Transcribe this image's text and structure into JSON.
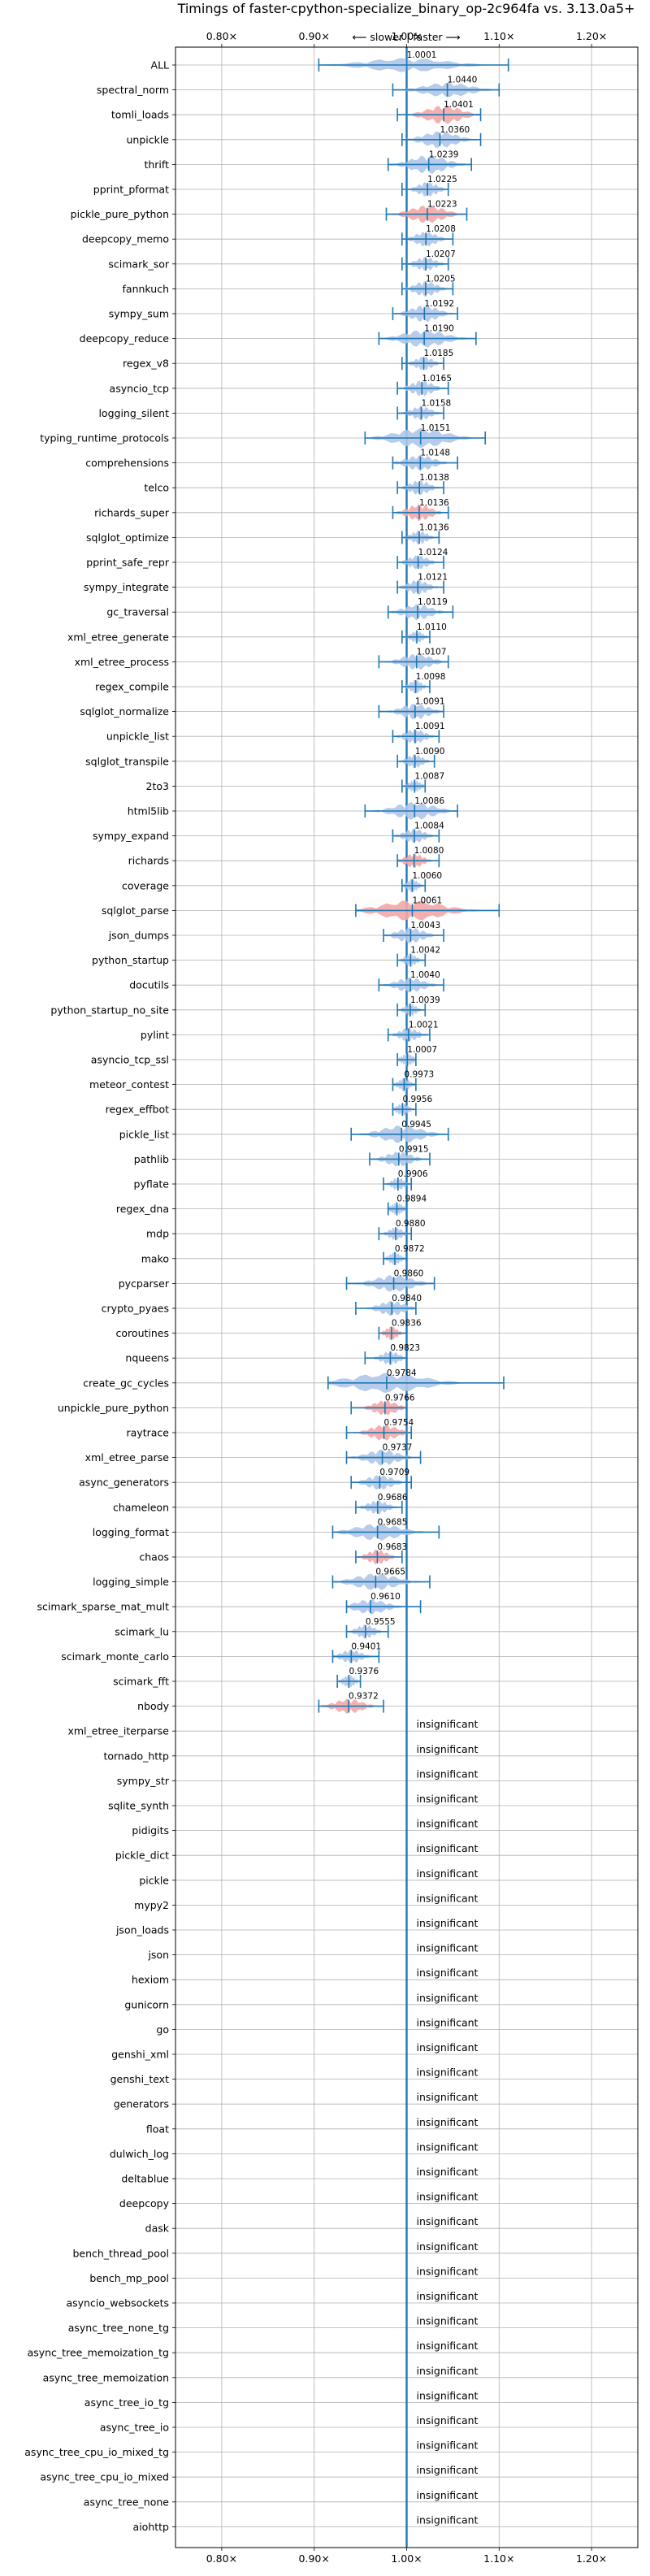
{
  "chart_data": {
    "type": "violin",
    "title": "Timings of faster-cpython-specialize_binary_op-2c964fa vs. 3.13.0a5+",
    "direction_label": "⟵ slower | faster ⟶",
    "xlim": [
      0.75,
      1.25
    ],
    "x_ticks": [
      0.8,
      0.9,
      1.0,
      1.1,
      1.2
    ],
    "x_tick_labels": [
      "0.80×",
      "0.90×",
      "1.00×",
      "1.10×",
      "1.20×"
    ],
    "grid": true,
    "colors": {
      "normal": "#1f77b4",
      "normal_fill": "#aec7e8",
      "highlight_fill": "#f4a6a6"
    },
    "insignificant_label": "insignificant",
    "benchmarks": [
      {
        "name": "ALL",
        "value": 1.0001,
        "low": 0.905,
        "high": 1.11,
        "width": 0.03,
        "highlight": false
      },
      {
        "name": "spectral_norm",
        "value": 1.044,
        "low": 0.985,
        "high": 1.1,
        "width": 0.04,
        "highlight": false
      },
      {
        "name": "tomli_loads",
        "value": 1.0401,
        "low": 0.99,
        "high": 1.08,
        "width": 0.08,
        "highlight": true
      },
      {
        "name": "unpickle",
        "value": 1.036,
        "low": 0.995,
        "high": 1.08,
        "width": 0.06,
        "highlight": false
      },
      {
        "name": "thrift",
        "value": 1.0239,
        "low": 0.98,
        "high": 1.07,
        "width": 0.08,
        "highlight": false
      },
      {
        "name": "pprint_pformat",
        "value": 1.0225,
        "low": 0.995,
        "high": 1.045,
        "width": 0.04,
        "highlight": false
      },
      {
        "name": "pickle_pure_python",
        "value": 1.0223,
        "low": 0.978,
        "high": 1.065,
        "width": 0.07,
        "highlight": true
      },
      {
        "name": "deepcopy_memo",
        "value": 1.0208,
        "low": 0.995,
        "high": 1.05,
        "width": 0.04,
        "highlight": false
      },
      {
        "name": "scimark_sor",
        "value": 1.0207,
        "low": 0.995,
        "high": 1.045,
        "width": 0.03,
        "highlight": false
      },
      {
        "name": "fannkuch",
        "value": 1.0205,
        "low": 0.995,
        "high": 1.05,
        "width": 0.05,
        "highlight": false
      },
      {
        "name": "sympy_sum",
        "value": 1.0192,
        "low": 0.985,
        "high": 1.055,
        "width": 0.06,
        "highlight": false
      },
      {
        "name": "deepcopy_reduce",
        "value": 1.019,
        "low": 0.97,
        "high": 1.075,
        "width": 0.07,
        "highlight": false
      },
      {
        "name": "regex_v8",
        "value": 1.0185,
        "low": 0.995,
        "high": 1.04,
        "width": 0.03,
        "highlight": false
      },
      {
        "name": "asyncio_tcp",
        "value": 1.0165,
        "low": 0.99,
        "high": 1.045,
        "width": 0.05,
        "highlight": false
      },
      {
        "name": "logging_silent",
        "value": 1.0158,
        "low": 0.99,
        "high": 1.04,
        "width": 0.03,
        "highlight": false
      },
      {
        "name": "typing_runtime_protocols",
        "value": 1.0151,
        "low": 0.955,
        "high": 1.085,
        "width": 0.09,
        "highlight": false
      },
      {
        "name": "comprehensions",
        "value": 1.0148,
        "low": 0.985,
        "high": 1.055,
        "width": 0.05,
        "highlight": false
      },
      {
        "name": "telco",
        "value": 1.0138,
        "low": 0.99,
        "high": 1.04,
        "width": 0.04,
        "highlight": false
      },
      {
        "name": "richards_super",
        "value": 1.0136,
        "low": 0.985,
        "high": 1.045,
        "width": 0.06,
        "highlight": true
      },
      {
        "name": "sqlglot_optimize",
        "value": 1.0136,
        "low": 0.995,
        "high": 1.035,
        "width": 0.03,
        "highlight": false
      },
      {
        "name": "pprint_safe_repr",
        "value": 1.0124,
        "low": 0.99,
        "high": 1.04,
        "width": 0.03,
        "highlight": false
      },
      {
        "name": "sympy_integrate",
        "value": 1.0121,
        "low": 0.99,
        "high": 1.04,
        "width": 0.04,
        "highlight": false
      },
      {
        "name": "gc_traversal",
        "value": 1.0119,
        "low": 0.98,
        "high": 1.05,
        "width": 0.05,
        "highlight": false
      },
      {
        "name": "xml_etree_generate",
        "value": 1.011,
        "low": 0.995,
        "high": 1.025,
        "width": 0.02,
        "highlight": false
      },
      {
        "name": "xml_etree_process",
        "value": 1.0107,
        "low": 0.97,
        "high": 1.045,
        "width": 0.05,
        "highlight": false
      },
      {
        "name": "regex_compile",
        "value": 1.0098,
        "low": 0.995,
        "high": 1.025,
        "width": 0.03,
        "highlight": false
      },
      {
        "name": "sqlglot_normalize",
        "value": 1.0091,
        "low": 0.97,
        "high": 1.04,
        "width": 0.05,
        "highlight": false
      },
      {
        "name": "unpickle_list",
        "value": 1.0091,
        "low": 0.985,
        "high": 1.035,
        "width": 0.04,
        "highlight": false
      },
      {
        "name": "sqlglot_transpile",
        "value": 1.009,
        "low": 0.99,
        "high": 1.03,
        "width": 0.03,
        "highlight": false
      },
      {
        "name": "2to3",
        "value": 1.0087,
        "low": 0.995,
        "high": 1.02,
        "width": 0.02,
        "highlight": false
      },
      {
        "name": "html5lib",
        "value": 1.0086,
        "low": 0.955,
        "high": 1.055,
        "width": 0.07,
        "highlight": false
      },
      {
        "name": "sympy_expand",
        "value": 1.0084,
        "low": 0.985,
        "high": 1.035,
        "width": 0.04,
        "highlight": false
      },
      {
        "name": "richards",
        "value": 1.008,
        "low": 0.99,
        "high": 1.035,
        "width": 0.04,
        "highlight": true
      },
      {
        "name": "coverage",
        "value": 1.006,
        "low": 0.995,
        "high": 1.02,
        "width": 0.02,
        "highlight": false
      },
      {
        "name": "sqlglot_parse",
        "value": 1.0061,
        "low": 0.945,
        "high": 1.1,
        "width": 0.1,
        "highlight": true
      },
      {
        "name": "json_dumps",
        "value": 1.0043,
        "low": 0.975,
        "high": 1.04,
        "width": 0.05,
        "highlight": false
      },
      {
        "name": "python_startup",
        "value": 1.0042,
        "low": 0.99,
        "high": 1.02,
        "width": 0.02,
        "highlight": false
      },
      {
        "name": "docutils",
        "value": 1.004,
        "low": 0.97,
        "high": 1.04,
        "width": 0.04,
        "highlight": false
      },
      {
        "name": "python_startup_no_site",
        "value": 1.0039,
        "low": 0.99,
        "high": 1.02,
        "width": 0.02,
        "highlight": false
      },
      {
        "name": "pylint",
        "value": 1.0021,
        "low": 0.98,
        "high": 1.025,
        "width": 0.03,
        "highlight": false
      },
      {
        "name": "asyncio_tcp_ssl",
        "value": 1.0007,
        "low": 0.99,
        "high": 1.01,
        "width": 0.02,
        "highlight": false
      },
      {
        "name": "meteor_contest",
        "value": 0.9973,
        "low": 0.985,
        "high": 1.01,
        "width": 0.02,
        "highlight": false
      },
      {
        "name": "regex_effbot",
        "value": 0.9956,
        "low": 0.985,
        "high": 1.01,
        "width": 0.02,
        "highlight": false
      },
      {
        "name": "pickle_list",
        "value": 0.9945,
        "low": 0.94,
        "high": 1.045,
        "width": 0.07,
        "highlight": false
      },
      {
        "name": "pathlib",
        "value": 0.9915,
        "low": 0.96,
        "high": 1.025,
        "width": 0.04,
        "highlight": false
      },
      {
        "name": "pyflate",
        "value": 0.9906,
        "low": 0.975,
        "high": 1.005,
        "width": 0.03,
        "highlight": false
      },
      {
        "name": "regex_dna",
        "value": 0.9894,
        "low": 0.98,
        "high": 1.0,
        "width": 0.02,
        "highlight": false
      },
      {
        "name": "mdp",
        "value": 0.988,
        "low": 0.97,
        "high": 1.005,
        "width": 0.02,
        "highlight": false
      },
      {
        "name": "mako",
        "value": 0.9872,
        "low": 0.975,
        "high": 1.0,
        "width": 0.02,
        "highlight": false
      },
      {
        "name": "pycparser",
        "value": 0.986,
        "low": 0.935,
        "high": 1.03,
        "width": 0.06,
        "highlight": false
      },
      {
        "name": "crypto_pyaes",
        "value": 0.984,
        "low": 0.945,
        "high": 1.01,
        "width": 0.04,
        "highlight": false
      },
      {
        "name": "coroutines",
        "value": 0.9836,
        "low": 0.97,
        "high": 1.0,
        "width": 0.03,
        "highlight": true
      },
      {
        "name": "nqueens",
        "value": 0.9823,
        "low": 0.955,
        "high": 1.0,
        "width": 0.03,
        "highlight": false
      },
      {
        "name": "create_gc_cycles",
        "value": 0.9784,
        "low": 0.915,
        "high": 1.105,
        "width": 0.09,
        "highlight": false
      },
      {
        "name": "unpickle_pure_python",
        "value": 0.9766,
        "low": 0.94,
        "high": 1.0,
        "width": 0.04,
        "highlight": true
      },
      {
        "name": "raytrace",
        "value": 0.9754,
        "low": 0.935,
        "high": 1.005,
        "width": 0.05,
        "highlight": true
      },
      {
        "name": "xml_etree_parse",
        "value": 0.9737,
        "low": 0.935,
        "high": 1.015,
        "width": 0.05,
        "highlight": false
      },
      {
        "name": "async_generators",
        "value": 0.9709,
        "low": 0.94,
        "high": 1.005,
        "width": 0.04,
        "highlight": false
      },
      {
        "name": "chameleon",
        "value": 0.9686,
        "low": 0.945,
        "high": 0.995,
        "width": 0.03,
        "highlight": false
      },
      {
        "name": "logging_format",
        "value": 0.9685,
        "low": 0.92,
        "high": 1.035,
        "width": 0.06,
        "highlight": false
      },
      {
        "name": "chaos",
        "value": 0.9683,
        "low": 0.945,
        "high": 0.995,
        "width": 0.04,
        "highlight": true
      },
      {
        "name": "logging_simple",
        "value": 0.9665,
        "low": 0.92,
        "high": 1.025,
        "width": 0.06,
        "highlight": false
      },
      {
        "name": "scimark_sparse_mat_mult",
        "value": 0.961,
        "low": 0.935,
        "high": 1.015,
        "width": 0.04,
        "highlight": false
      },
      {
        "name": "scimark_lu",
        "value": 0.9555,
        "low": 0.935,
        "high": 0.98,
        "width": 0.03,
        "highlight": false
      },
      {
        "name": "scimark_monte_carlo",
        "value": 0.9401,
        "low": 0.92,
        "high": 0.97,
        "width": 0.03,
        "highlight": false
      },
      {
        "name": "scimark_fft",
        "value": 0.9376,
        "low": 0.925,
        "high": 0.95,
        "width": 0.02,
        "highlight": false
      },
      {
        "name": "nbody",
        "value": 0.9372,
        "low": 0.905,
        "high": 0.975,
        "width": 0.04,
        "highlight": true
      },
      {
        "name": "xml_etree_iterparse",
        "insignificant": true
      },
      {
        "name": "tornado_http",
        "insignificant": true
      },
      {
        "name": "sympy_str",
        "insignificant": true
      },
      {
        "name": "sqlite_synth",
        "insignificant": true
      },
      {
        "name": "pidigits",
        "insignificant": true
      },
      {
        "name": "pickle_dict",
        "insignificant": true
      },
      {
        "name": "pickle",
        "insignificant": true
      },
      {
        "name": "mypy2",
        "insignificant": true
      },
      {
        "name": "json_loads",
        "insignificant": true
      },
      {
        "name": "json",
        "insignificant": true
      },
      {
        "name": "hexiom",
        "insignificant": true
      },
      {
        "name": "gunicorn",
        "insignificant": true
      },
      {
        "name": "go",
        "insignificant": true
      },
      {
        "name": "genshi_xml",
        "insignificant": true
      },
      {
        "name": "genshi_text",
        "insignificant": true
      },
      {
        "name": "generators",
        "insignificant": true
      },
      {
        "name": "float",
        "insignificant": true
      },
      {
        "name": "dulwich_log",
        "insignificant": true
      },
      {
        "name": "deltablue",
        "insignificant": true
      },
      {
        "name": "deepcopy",
        "insignificant": true
      },
      {
        "name": "dask",
        "insignificant": true
      },
      {
        "name": "bench_thread_pool",
        "insignificant": true
      },
      {
        "name": "bench_mp_pool",
        "insignificant": true
      },
      {
        "name": "asyncio_websockets",
        "insignificant": true
      },
      {
        "name": "async_tree_none_tg",
        "insignificant": true
      },
      {
        "name": "async_tree_memoization_tg",
        "insignificant": true
      },
      {
        "name": "async_tree_memoization",
        "insignificant": true
      },
      {
        "name": "async_tree_io_tg",
        "insignificant": true
      },
      {
        "name": "async_tree_io",
        "insignificant": true
      },
      {
        "name": "async_tree_cpu_io_mixed_tg",
        "insignificant": true
      },
      {
        "name": "async_tree_cpu_io_mixed",
        "insignificant": true
      },
      {
        "name": "async_tree_none",
        "insignificant": true
      },
      {
        "name": "aiohttp",
        "insignificant": true
      }
    ]
  }
}
